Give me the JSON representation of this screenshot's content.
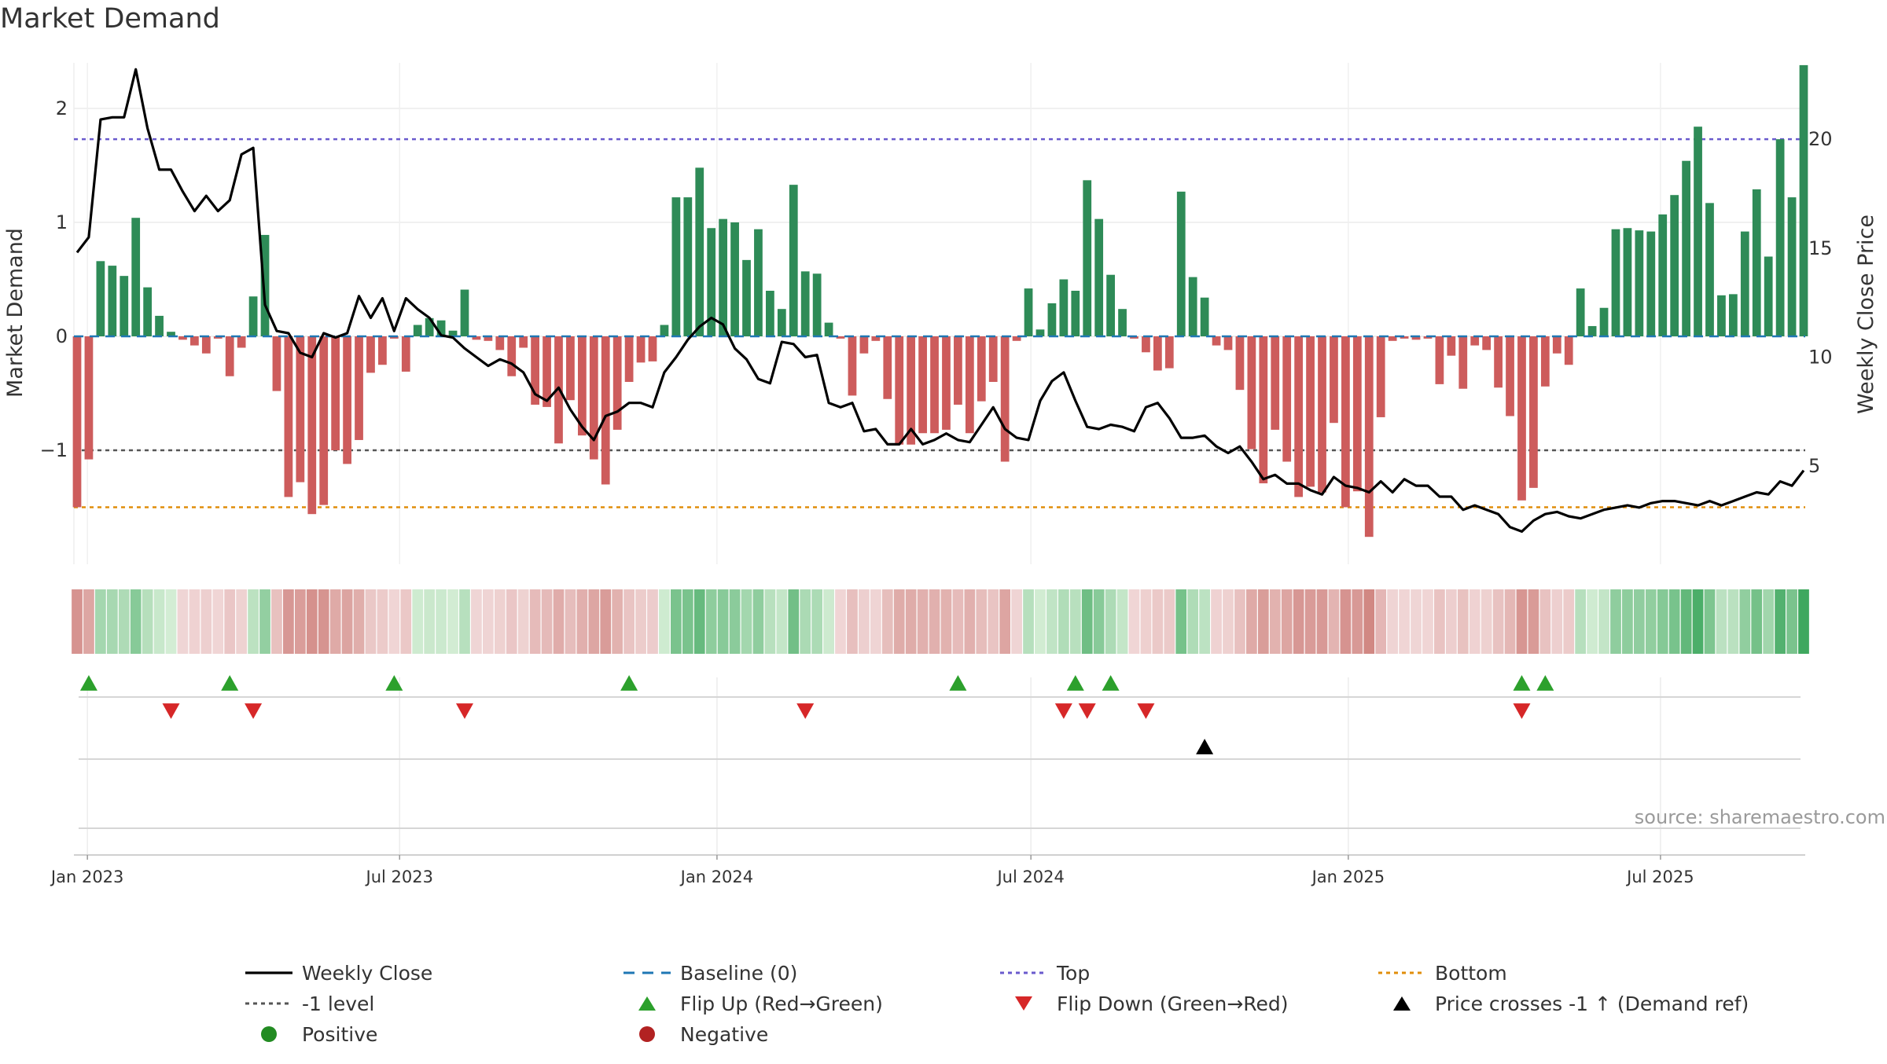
{
  "chart_data": {
    "type": "bar",
    "title": "Market Demand",
    "ylabel_left": "Market Demand",
    "ylabel_right": "Weekly Close Price",
    "source": "source: sharemaestro.com",
    "ylim_left": [
      -2.0,
      2.4
    ],
    "ylim_right": [
      0.5,
      23.5
    ],
    "yticks_left": [
      {
        "v": 2,
        "label": "2"
      },
      {
        "v": 1,
        "label": "1"
      },
      {
        "v": 0,
        "label": "0"
      },
      {
        "v": -1,
        "label": "−1"
      }
    ],
    "yticks_right": [
      {
        "v": 20,
        "label": "20"
      },
      {
        "v": 15,
        "label": "15"
      },
      {
        "v": 10,
        "label": "10"
      },
      {
        "v": 5,
        "label": "5"
      }
    ],
    "x_start": "2022-12-26",
    "x_end": "2025-09-22",
    "xticks": [
      {
        "date": "2023-01-01",
        "label": "Jan 2023"
      },
      {
        "date": "2023-07-01",
        "label": "Jul 2023"
      },
      {
        "date": "2024-01-01",
        "label": "Jan 2024"
      },
      {
        "date": "2024-07-01",
        "label": "Jul 2024"
      },
      {
        "date": "2025-01-01",
        "label": "Jan 2025"
      },
      {
        "date": "2025-07-01",
        "label": "Jul 2025"
      }
    ],
    "ref_lines": {
      "top": 1.73,
      "minus_one": -1.0,
      "bottom": -1.5,
      "baseline": 0
    },
    "grid": true,
    "legend_position": "bottom",
    "colors": {
      "positive": "#2e8b57",
      "negative": "#cd5c5c",
      "close": "#000000",
      "baseline": "#1f77b4",
      "top": "#6a5acd",
      "minus_one": "#555555",
      "bottom": "#e08e0b",
      "flip_up": "#2ca02c",
      "flip_down": "#d62728",
      "cross": "#000000",
      "dot_positive": "#228b22",
      "dot_negative": "#b22222"
    },
    "series": [
      {
        "name": "Market Demand",
        "values": [
          -1.5,
          -1.08,
          0.66,
          0.62,
          0.53,
          1.04,
          0.43,
          0.18,
          0.04,
          -0.03,
          -0.08,
          -0.15,
          -0.02,
          -0.35,
          -0.1,
          0.35,
          0.89,
          -0.48,
          -1.41,
          -1.28,
          -1.56,
          -1.48,
          -1.0,
          -1.12,
          -0.91,
          -0.32,
          -0.25,
          -0.02,
          -0.31,
          0.1,
          0.16,
          0.14,
          0.05,
          0.41,
          -0.03,
          -0.04,
          -0.12,
          -0.35,
          -0.1,
          -0.6,
          -0.62,
          -0.94,
          -0.56,
          -0.87,
          -1.08,
          -1.3,
          -0.82,
          -0.4,
          -0.23,
          -0.22,
          0.1,
          1.22,
          1.22,
          1.48,
          0.95,
          1.03,
          1.0,
          0.67,
          0.94,
          0.4,
          0.24,
          1.33,
          0.57,
          0.55,
          0.12,
          -0.02,
          -0.52,
          -0.15,
          -0.04,
          -0.55,
          -0.95,
          -0.95,
          -0.85,
          -0.85,
          -0.82,
          -0.6,
          -0.85,
          -0.57,
          -0.4,
          -1.1,
          -0.04,
          0.42,
          0.06,
          0.29,
          0.5,
          0.4,
          1.37,
          1.03,
          0.54,
          0.24,
          -0.02,
          -0.14,
          -0.3,
          -0.28,
          1.27,
          0.52,
          0.34,
          -0.08,
          -0.12,
          -0.47,
          -0.99,
          -1.29,
          -0.82,
          -1.1,
          -1.41,
          -1.32,
          -1.37,
          -0.76,
          -1.5,
          -1.36,
          -1.76,
          -0.71,
          -0.04,
          -0.02,
          -0.03,
          -0.02,
          -0.42,
          -0.17,
          -0.46,
          -0.08,
          -0.12,
          -0.45,
          -0.7,
          -1.44,
          -1.33,
          -0.44,
          -0.15,
          -0.25,
          0.42,
          0.09,
          0.25,
          0.94,
          0.95,
          0.93,
          0.92,
          1.07,
          1.24,
          1.54,
          1.84,
          1.17,
          0.36,
          0.37,
          0.92,
          1.29,
          0.7,
          1.73,
          1.22,
          2.38
        ]
      },
      {
        "name": "Weekly Close",
        "values": [
          14.8,
          15.5,
          20.9,
          21.0,
          21.0,
          23.2,
          20.5,
          18.6,
          18.6,
          17.6,
          16.7,
          17.4,
          16.7,
          17.2,
          19.3,
          19.6,
          12.4,
          11.2,
          11.1,
          10.2,
          10.0,
          11.1,
          10.9,
          11.1,
          12.8,
          11.8,
          12.7,
          11.2,
          12.7,
          12.2,
          11.8,
          11.0,
          10.9,
          10.4,
          10.0,
          9.6,
          9.9,
          9.7,
          9.3,
          8.3,
          8.0,
          8.6,
          7.6,
          6.8,
          6.2,
          7.3,
          7.5,
          7.9,
          7.9,
          7.7,
          9.3,
          10.0,
          10.8,
          11.4,
          11.8,
          11.5,
          10.4,
          9.9,
          9.0,
          8.8,
          10.7,
          10.6,
          10.0,
          10.1,
          7.9,
          7.7,
          7.9,
          6.6,
          6.7,
          6.0,
          6.0,
          6.7,
          6.0,
          6.2,
          6.5,
          6.2,
          6.1,
          6.9,
          7.7,
          6.7,
          6.3,
          6.2,
          8.0,
          8.9,
          9.3,
          8.0,
          6.8,
          6.7,
          6.9,
          6.8,
          6.6,
          7.7,
          7.9,
          7.2,
          6.3,
          6.3,
          6.4,
          5.9,
          5.6,
          5.9,
          5.2,
          4.4,
          4.6,
          4.2,
          4.2,
          3.9,
          3.7,
          4.5,
          4.1,
          4.0,
          3.8,
          4.3,
          3.8,
          4.4,
          4.1,
          4.1,
          3.6,
          3.6,
          3.0,
          3.2,
          3.0,
          2.8,
          2.2,
          2.0,
          2.5,
          2.8,
          2.9,
          2.7,
          2.6,
          2.8,
          3.0,
          3.1,
          3.2,
          3.1,
          3.3,
          3.4,
          3.4,
          3.3,
          3.2,
          3.4,
          3.2,
          3.4,
          3.6,
          3.8,
          3.7,
          4.3,
          4.1,
          4.8
        ]
      }
    ],
    "strip": {
      "values_from": "Market Demand"
    },
    "flip_up_weeks": [
      1,
      13,
      27,
      47,
      75,
      85,
      88,
      123,
      125
    ],
    "flip_down_weeks": [
      8,
      15,
      33,
      62,
      84,
      86,
      91,
      123
    ],
    "cross_weeks": [
      96
    ],
    "legend": [
      {
        "key": "close",
        "label": "Weekly Close",
        "symbol": "line-solid"
      },
      {
        "key": "baseline",
        "label": "Baseline (0)",
        "symbol": "line-dashed"
      },
      {
        "key": "top",
        "label": "Top",
        "symbol": "line-dotted"
      },
      {
        "key": "bottom",
        "label": "Bottom",
        "symbol": "line-dotted"
      },
      {
        "key": "minus_one",
        "label": "-1 level",
        "symbol": "line-dotted"
      },
      {
        "key": "flip_up",
        "label": "Flip Up (Red→Green)",
        "symbol": "triangle-up"
      },
      {
        "key": "flip_down",
        "label": "Flip Down (Green→Red)",
        "symbol": "triangle-down"
      },
      {
        "key": "cross",
        "label": "Price crosses -1 ↑ (Demand ref)",
        "symbol": "triangle-up"
      },
      {
        "key": "dot_positive",
        "label": "Positive",
        "symbol": "dot"
      },
      {
        "key": "dot_negative",
        "label": "Negative",
        "symbol": "dot"
      }
    ]
  }
}
